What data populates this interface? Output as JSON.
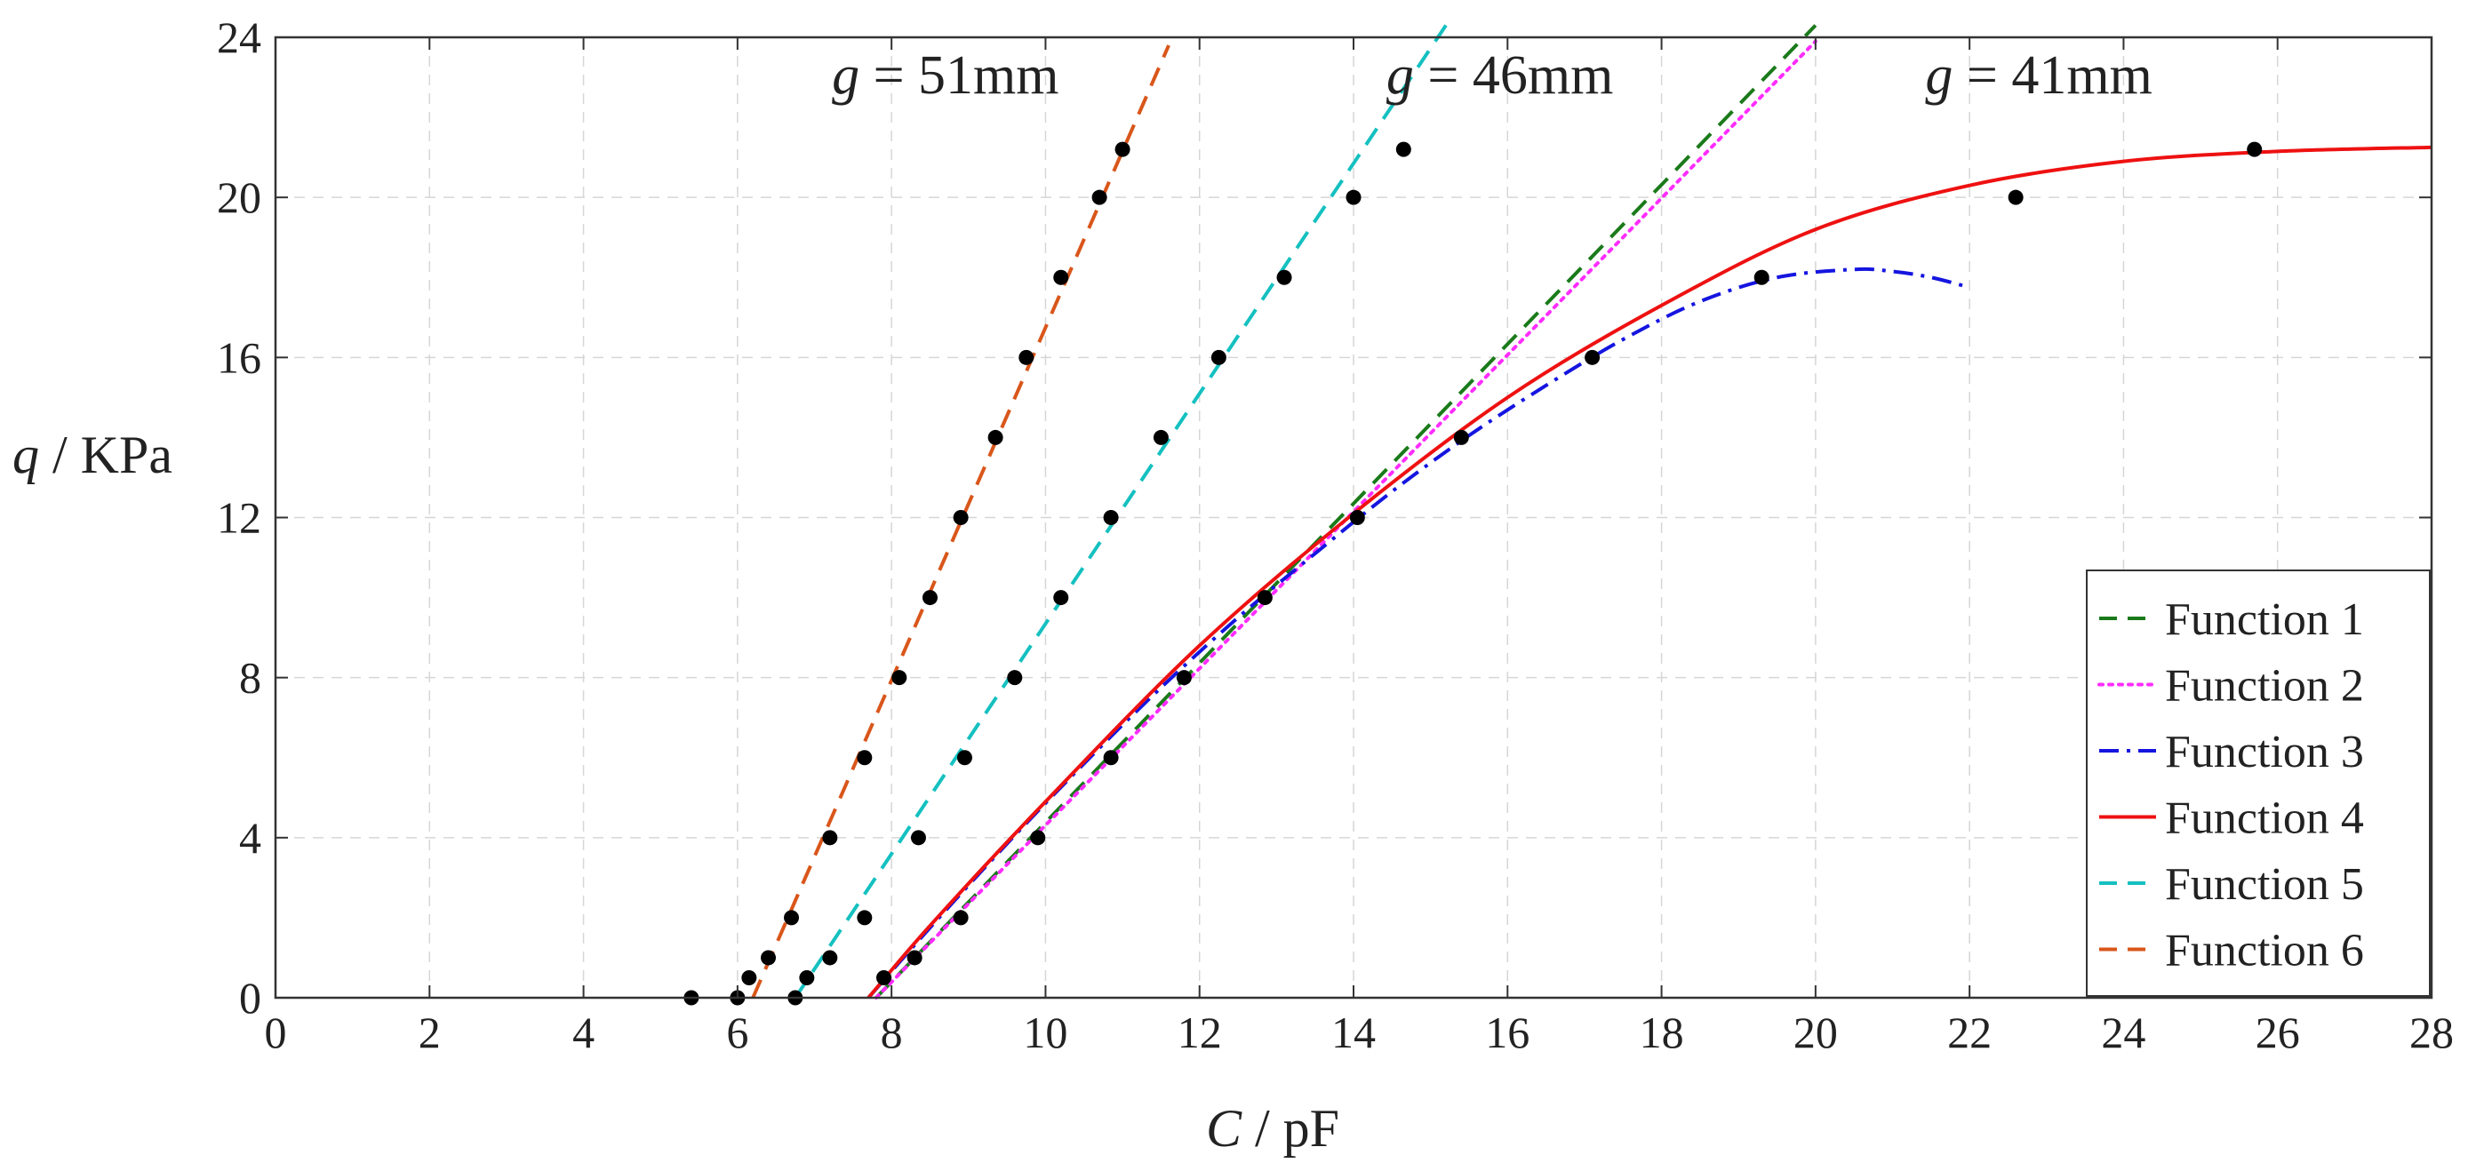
{
  "chart_data": {
    "type": "line",
    "title": "",
    "xlabel": {
      "symbol": "C",
      "unit": "pF"
    },
    "ylabel": {
      "symbol": "q",
      "unit": "KPa"
    },
    "xlim": [
      0,
      28
    ],
    "ylim": [
      0,
      24
    ],
    "xticks": [
      0,
      2,
      4,
      6,
      8,
      10,
      12,
      14,
      16,
      18,
      20,
      22,
      24,
      26,
      28
    ],
    "yticks": [
      0,
      4,
      8,
      12,
      16,
      20,
      24
    ],
    "grid": true,
    "legend_position": "bottom-right",
    "annotations": [
      {
        "symbol": "g",
        "text": "51mm",
        "x": 8.7,
        "y": 22.6
      },
      {
        "symbol": "g",
        "text": "46mm",
        "x": 15.9,
        "y": 22.6
      },
      {
        "symbol": "g",
        "text": "41mm",
        "x": 22.9,
        "y": 22.6
      }
    ],
    "series": [
      {
        "name": "Function 1",
        "style": "dashed",
        "color": "#1a7a1a",
        "x": [
          7.8,
          20.0
        ],
        "y": [
          0,
          24.3
        ]
      },
      {
        "name": "Function 2",
        "style": "dotted",
        "color": "#ff2cff",
        "x": [
          7.8,
          20.0
        ],
        "y": [
          0,
          23.9
        ]
      },
      {
        "name": "Function 3",
        "style": "dashdot",
        "color": "#1515e0",
        "x": [
          7.7,
          8.5,
          9.5,
          10.5,
          11.5,
          12.5,
          13.5,
          14.5,
          15.5,
          16.5,
          17.5,
          18.5,
          19.5,
          20.5,
          21.0,
          21.5,
          22.0
        ],
        "y": [
          0,
          1.75,
          3.85,
          5.85,
          7.75,
          9.5,
          11.1,
          12.65,
          14.05,
          15.3,
          16.45,
          17.4,
          18.0,
          18.2,
          18.15,
          18.0,
          17.75
        ]
      },
      {
        "name": "Function 4",
        "style": "solid",
        "color": "#ee1111",
        "x": [
          7.7,
          8.5,
          10,
          12,
          14,
          16,
          18,
          20,
          22,
          24,
          26,
          28
        ],
        "y": [
          0,
          1.8,
          4.9,
          8.8,
          12.1,
          15.0,
          17.3,
          19.2,
          20.3,
          20.9,
          21.15,
          21.25
        ]
      },
      {
        "name": "Function 5",
        "style": "dashed",
        "color": "#15c0c0",
        "x": [
          6.75,
          15.2
        ],
        "y": [
          0,
          24.3
        ]
      },
      {
        "name": "Function 6",
        "style": "dashed",
        "color": "#d9561a",
        "x": [
          6.2,
          11.6
        ],
        "y": [
          0,
          23.8
        ]
      }
    ],
    "points": [
      {
        "x": 5.4,
        "y": 0
      },
      {
        "x": 6.0,
        "y": 0
      },
      {
        "x": 6.15,
        "y": 0.5
      },
      {
        "x": 6.4,
        "y": 1
      },
      {
        "x": 6.7,
        "y": 2
      },
      {
        "x": 7.2,
        "y": 4
      },
      {
        "x": 7.65,
        "y": 6
      },
      {
        "x": 8.1,
        "y": 8
      },
      {
        "x": 8.5,
        "y": 10
      },
      {
        "x": 8.9,
        "y": 12
      },
      {
        "x": 9.35,
        "y": 14
      },
      {
        "x": 9.75,
        "y": 16
      },
      {
        "x": 10.2,
        "y": 18
      },
      {
        "x": 10.7,
        "y": 20
      },
      {
        "x": 11.0,
        "y": 21.2
      },
      {
        "x": 6.75,
        "y": 0
      },
      {
        "x": 6.9,
        "y": 0.5
      },
      {
        "x": 7.2,
        "y": 1
      },
      {
        "x": 7.65,
        "y": 2
      },
      {
        "x": 8.35,
        "y": 4
      },
      {
        "x": 8.95,
        "y": 6
      },
      {
        "x": 9.6,
        "y": 8
      },
      {
        "x": 10.2,
        "y": 10
      },
      {
        "x": 10.85,
        "y": 12
      },
      {
        "x": 11.5,
        "y": 14
      },
      {
        "x": 12.25,
        "y": 16
      },
      {
        "x": 13.1,
        "y": 18
      },
      {
        "x": 14.0,
        "y": 20
      },
      {
        "x": 14.65,
        "y": 21.2
      },
      {
        "x": 7.9,
        "y": 0.5
      },
      {
        "x": 8.3,
        "y": 1
      },
      {
        "x": 8.9,
        "y": 2
      },
      {
        "x": 9.9,
        "y": 4
      },
      {
        "x": 10.85,
        "y": 6
      },
      {
        "x": 11.8,
        "y": 8
      },
      {
        "x": 12.85,
        "y": 10
      },
      {
        "x": 14.05,
        "y": 12
      },
      {
        "x": 15.4,
        "y": 14
      },
      {
        "x": 17.1,
        "y": 16
      },
      {
        "x": 19.3,
        "y": 18
      },
      {
        "x": 22.6,
        "y": 20
      },
      {
        "x": 25.7,
        "y": 21.2
      }
    ]
  }
}
